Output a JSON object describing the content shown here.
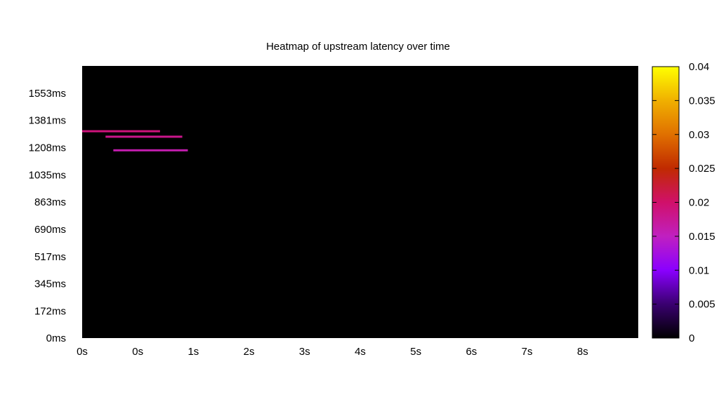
{
  "chart_data": {
    "type": "heatmap",
    "title": "Heatmap of upstream latency over time",
    "xlabel": "",
    "ylabel": "",
    "x_tick_labels": [
      "0s",
      "0s",
      "1s",
      "2s",
      "3s",
      "4s",
      "5s",
      "6s",
      "7s",
      "8s"
    ],
    "x_tick_values": [
      0,
      0.5,
      1,
      1.5,
      2,
      2.5,
      3,
      3.5,
      4,
      4.5
    ],
    "xlim": [
      0,
      5
    ],
    "y_tick_labels": [
      "0ms",
      "172ms",
      "345ms",
      "517ms",
      "690ms",
      "863ms",
      "1035ms",
      "1208ms",
      "1381ms",
      "1553ms"
    ],
    "y_tick_values": [
      0,
      172,
      345,
      517,
      690,
      863,
      1035,
      1208,
      1381,
      1553
    ],
    "ylim": [
      0,
      1726
    ],
    "background_color": "#000000",
    "colorbar": {
      "min": 0,
      "max": 0.04,
      "tick_labels": [
        "0",
        "0.005",
        "0.01",
        "0.015",
        "0.02",
        "0.025",
        "0.03",
        "0.035",
        "0.04"
      ],
      "tick_values": [
        0,
        0.005,
        0.01,
        0.015,
        0.02,
        0.025,
        0.03,
        0.035,
        0.04
      ],
      "palette": [
        "#000000",
        "#3a0070",
        "#8a00ff",
        "#c020c0",
        "#d0106a",
        "#c02a00",
        "#e07000",
        "#f0b000",
        "#ffff00"
      ]
    },
    "cells": [
      {
        "x_start": 0.0,
        "x_end": 0.7,
        "y": 1312,
        "value": 0.019
      },
      {
        "x_start": 0.21,
        "x_end": 0.9,
        "y": 1277,
        "value": 0.018
      },
      {
        "x_start": 0.28,
        "x_end": 0.95,
        "y": 1191,
        "value": 0.016
      }
    ]
  }
}
